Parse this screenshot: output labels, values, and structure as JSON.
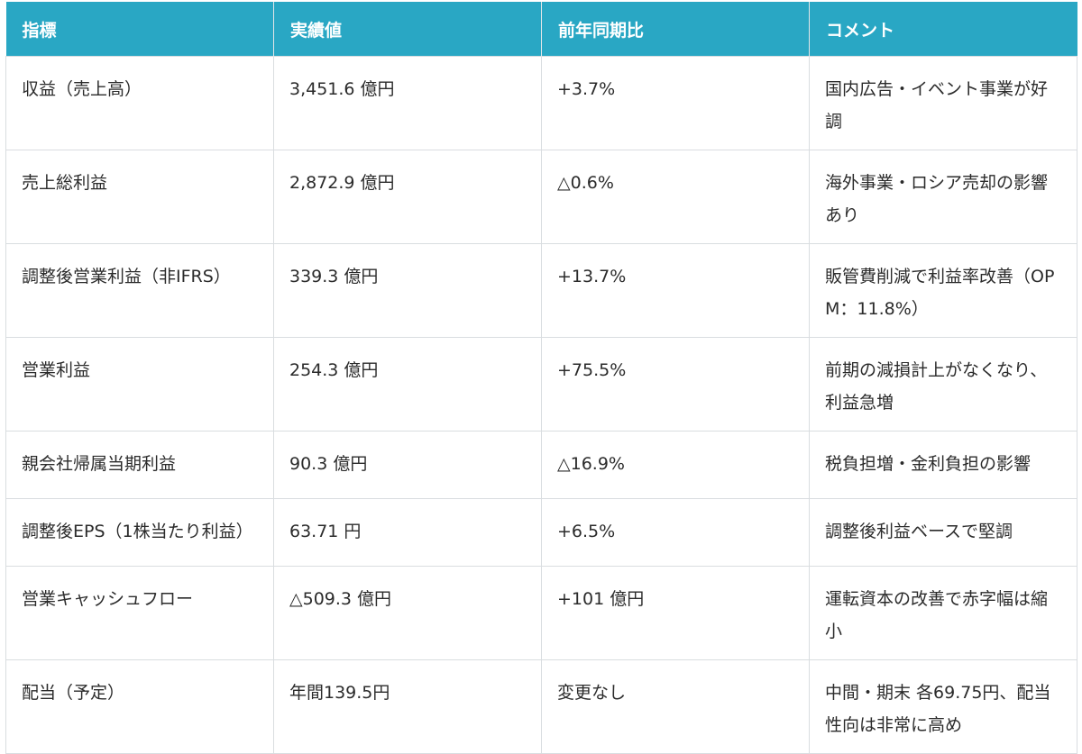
{
  "table": {
    "headers": [
      "指標",
      "実績値",
      "前年同期比",
      "コメント"
    ],
    "rows": [
      [
        "収益（売上高）",
        "3,451.6 億円",
        "+3.7%",
        "国内広告・イベント事業が好調"
      ],
      [
        "売上総利益",
        "2,872.9 億円",
        "△0.6%",
        "海外事業・ロシア売却の影響あり"
      ],
      [
        "調整後営業利益（非IFRS）",
        "339.3 億円",
        "+13.7%",
        "販管費削減で利益率改善（OPM：11.8%）"
      ],
      [
        "営業利益",
        "254.3 億円",
        "+75.5%",
        "前期の減損計上がなくなり、利益急増"
      ],
      [
        "親会社帰属当期利益",
        "90.3 億円",
        "△16.9%",
        "税負担増・金利負担の影響"
      ],
      [
        "調整後EPS（1株当たり利益）",
        "63.71 円",
        "+6.5%",
        "調整後利益ベースで堅調"
      ],
      [
        "営業キャッシュフロー",
        "△509.3 億円",
        "+101 億円",
        "運転資本の改善で赤字幅は縮小"
      ],
      [
        "配当（予定）",
        "年間139.5円",
        "変更なし",
        "中間・期末 各69.75円、配当性向は非常に高め"
      ]
    ]
  },
  "colors": {
    "header_bg": "#29a7c4",
    "header_text": "#ffffff",
    "border": "#d9dde0",
    "body_text": "#2b2b2b"
  }
}
